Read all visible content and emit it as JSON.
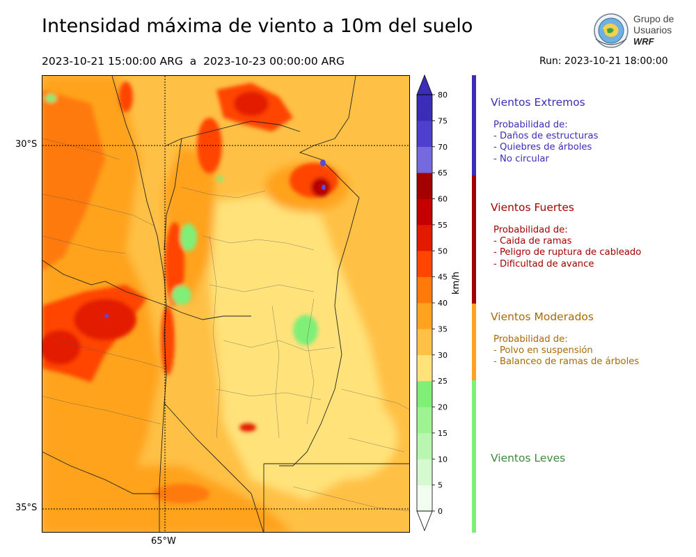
{
  "header": {
    "title": "Intensidad máxima de viento a 10m del suelo",
    "period": "2023-10-21 15:00:00 ARG  a  2023-10-23 00:00:00 ARG",
    "run": "Run: 2023-10-21 18:00:00"
  },
  "logo": {
    "line1": "Grupo de",
    "line2": "Usuarios",
    "line3": "WRF",
    "icon": "wrf-globe-logo-icon"
  },
  "map": {
    "lat_labels": [
      "30°S",
      "35°S"
    ],
    "lon_labels": [
      "65°W"
    ],
    "fill_colors": {
      "green": "#7fef78",
      "pale_yellow": "#ffe27a",
      "light_orange": "#ffc046",
      "orange": "#ffa21e",
      "dark_orange": "#ff7a0a",
      "red_orange": "#ff4500",
      "red": "#e31a00",
      "dark_red": "#b80000",
      "purple": "#5b4ad8"
    }
  },
  "colorbar": {
    "unit": "km/h",
    "ticks": [
      "0",
      "5",
      "10",
      "15",
      "20",
      "25",
      "30",
      "35",
      "40",
      "45",
      "50",
      "55",
      "60",
      "65",
      "70",
      "75",
      "80"
    ],
    "colors": [
      "#f0fdef",
      "#d6fad0",
      "#b9f6b0",
      "#9ef392",
      "#7fef78",
      "#ffe27a",
      "#ffc046",
      "#ffa21e",
      "#ff7a0a",
      "#ff4500",
      "#e31a00",
      "#c40000",
      "#a50000",
      "#7569df",
      "#4e3fcf",
      "#3b2db8"
    ]
  },
  "categories": [
    {
      "title": "Vientos Extremos",
      "color": "#3b2db8",
      "lines": [
        "Probabilidad de:",
        "- Daños de estructuras",
        "- Quiebres de árboles",
        "- No circular"
      ]
    },
    {
      "title": "Vientos Fuertes",
      "color": "#a50000",
      "lines": [
        "Probabilidad de:",
        "- Caida de ramas",
        "- Peligro de ruptura de cableado",
        "- Dificultad de avance"
      ]
    },
    {
      "title": "Vientos Moderados",
      "color": "#a86a06",
      "lines": [
        "Probabilidad de:",
        "- Polvo en suspensión",
        "- Balanceo de ramas de árboles"
      ]
    },
    {
      "title": "Vientos Leves",
      "color": "#3c8a3c",
      "lines": []
    }
  ],
  "category_bar_colors": [
    "#3b2db8",
    "#a50000",
    "#ffa21e",
    "#7fef78"
  ]
}
